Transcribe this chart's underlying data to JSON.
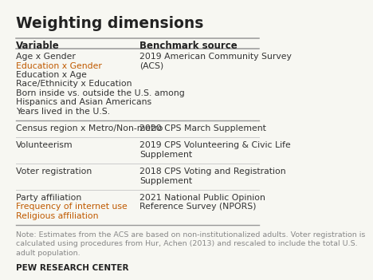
{
  "title": "Weighting dimensions",
  "col1_header": "Variable",
  "col2_header": "Benchmark source",
  "bg_color": "#f7f7f2",
  "row_data": [
    {
      "var_lines": [
        "Age x Gender",
        "Education x Gender",
        "Education x Age",
        "Race/Ethnicity x Education",
        "Born inside vs. outside the U.S. among",
        "Hispanics and Asian Americans",
        "Years lived in the U.S."
      ],
      "src_lines": [
        "2019 American Community Survey",
        "(ACS)"
      ],
      "sep_thick": true
    },
    {
      "var_lines": [
        "Census region x Metro/Non-metro"
      ],
      "src_lines": [
        "2020 CPS March Supplement"
      ],
      "sep_thick": false
    },
    {
      "var_lines": [
        "Volunteerism"
      ],
      "src_lines": [
        "2019 CPS Volunteering & Civic Life",
        "Supplement"
      ],
      "sep_thick": false
    },
    {
      "var_lines": [
        "Voter registration"
      ],
      "src_lines": [
        "2018 CPS Voting and Registration",
        "Supplement"
      ],
      "sep_thick": false
    },
    {
      "var_lines": [
        "Party affiliation",
        "Frequency of internet use",
        "Religious affiliation"
      ],
      "src_lines": [
        "2021 National Public Opinion",
        "Reference Survey (NPORS)"
      ],
      "sep_thick": true
    }
  ],
  "orange_items": [
    "Education x Gender",
    "Frequency of internet use",
    "Religious affiliation"
  ],
  "note_lines": [
    "Note: Estimates from the ACS are based on non-institutionalized adults. Voter registration is",
    "calculated using procedures from Hur, Achen (2013) and rescaled to include the total U.S.",
    "adult population."
  ],
  "footer": "PEW RESEARCH CENTER",
  "header_color": "#222222",
  "text_color": "#333333",
  "orange_color": "#c05a00",
  "note_color": "#888888",
  "thin_line_color": "#cccccc",
  "thick_line_color": "#999999",
  "title_fontsize": 13.5,
  "header_fontsize": 8.5,
  "body_fontsize": 7.8,
  "note_fontsize": 6.8,
  "footer_fontsize": 7.5
}
